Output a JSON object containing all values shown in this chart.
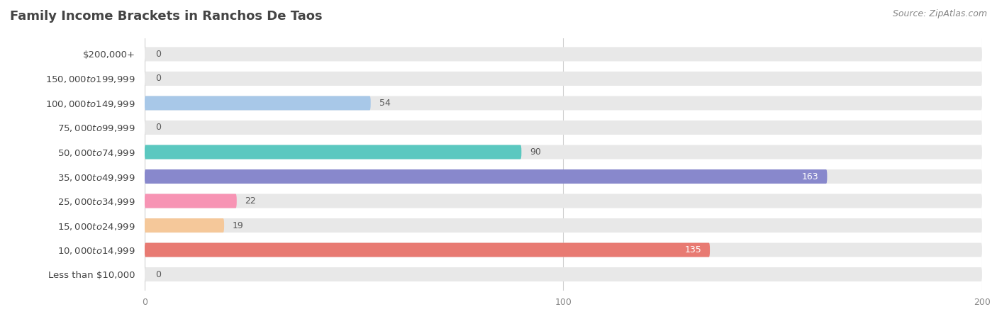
{
  "title": "Family Income Brackets in Ranchos De Taos",
  "source": "Source: ZipAtlas.com",
  "categories": [
    "Less than $10,000",
    "$10,000 to $14,999",
    "$15,000 to $24,999",
    "$25,000 to $34,999",
    "$35,000 to $49,999",
    "$50,000 to $74,999",
    "$75,000 to $99,999",
    "$100,000 to $149,999",
    "$150,000 to $199,999",
    "$200,000+"
  ],
  "values": [
    0,
    0,
    54,
    0,
    90,
    163,
    22,
    19,
    135,
    0
  ],
  "bar_colors": [
    "#f5c89a",
    "#f4a0a0",
    "#a8c8e8",
    "#c9add4",
    "#5bc8c0",
    "#8888cc",
    "#f794b4",
    "#f5c89a",
    "#e87a72",
    "#b0c8e8"
  ],
  "xlim": [
    0,
    200
  ],
  "background_color": "#ffffff",
  "bar_bg_color": "#e8e8e8",
  "title_fontsize": 13,
  "label_fontsize": 9.5,
  "value_fontsize": 9,
  "source_fontsize": 9,
  "title_color": "#444444",
  "label_color": "#444444",
  "value_color_dark": "#555555",
  "value_color_light": "#ffffff",
  "grid_color": "#cccccc",
  "tick_color": "#888888"
}
